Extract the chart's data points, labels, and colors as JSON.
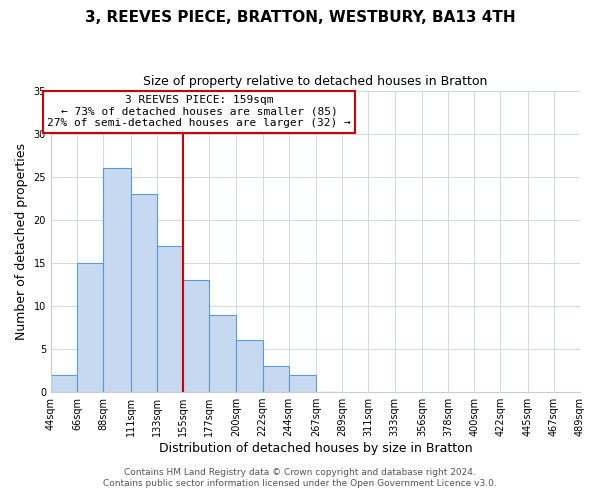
{
  "title": "3, REEVES PIECE, BRATTON, WESTBURY, BA13 4TH",
  "subtitle": "Size of property relative to detached houses in Bratton",
  "xlabel": "Distribution of detached houses by size in Bratton",
  "ylabel": "Number of detached properties",
  "bar_lefts": [
    44,
    66,
    88,
    111,
    133,
    155,
    177,
    200,
    222,
    244,
    267
  ],
  "bar_rights": [
    66,
    88,
    111,
    133,
    155,
    177,
    200,
    222,
    244,
    267,
    289
  ],
  "bar_heights": [
    2,
    15,
    26,
    23,
    17,
    13,
    9,
    6,
    3,
    2,
    0
  ],
  "bar_color": "#c6d9f0",
  "bar_edgecolor": "#5b9bd5",
  "vline_x": 155,
  "vline_color": "#cc0000",
  "ylim": [
    0,
    35
  ],
  "xlim_left": 44,
  "xlim_right": 489,
  "annotation_text": "3 REEVES PIECE: 159sqm\n← 73% of detached houses are smaller (85)\n27% of semi-detached houses are larger (32) →",
  "annotation_box_facecolor": "#ffffff",
  "annotation_box_edgecolor": "#cc0000",
  "tick_positions": [
    44,
    66,
    88,
    111,
    133,
    155,
    177,
    200,
    222,
    244,
    267,
    289,
    311,
    333,
    356,
    378,
    400,
    422,
    445,
    467,
    489
  ],
  "tick_labels": [
    "44sqm",
    "66sqm",
    "88sqm",
    "111sqm",
    "133sqm",
    "155sqm",
    "177sqm",
    "200sqm",
    "222sqm",
    "244sqm",
    "267sqm",
    "289sqm",
    "311sqm",
    "333sqm",
    "356sqm",
    "378sqm",
    "400sqm",
    "422sqm",
    "445sqm",
    "467sqm",
    "489sqm"
  ],
  "ytick_positions": [
    0,
    5,
    10,
    15,
    20,
    25,
    30,
    35
  ],
  "footer_line1": "Contains HM Land Registry data © Crown copyright and database right 2024.",
  "footer_line2": "Contains public sector information licensed under the Open Government Licence v3.0.",
  "title_fontsize": 11,
  "subtitle_fontsize": 9,
  "axis_label_fontsize": 9,
  "tick_fontsize": 7,
  "annotation_fontsize": 8,
  "footer_fontsize": 6.5
}
